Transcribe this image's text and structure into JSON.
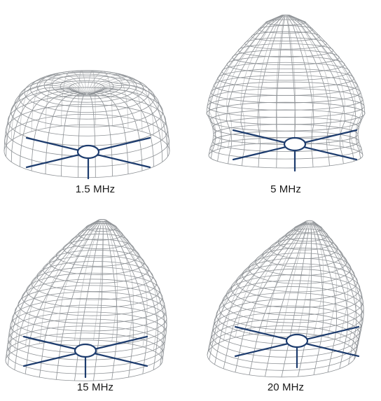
{
  "colors": {
    "mesh": "#8e9296",
    "antenna": "#1d3c6e",
    "background": "#ffffff",
    "text": "#1a1a1a"
  },
  "panels": [
    {
      "label": "1.5 MHz",
      "shape": "toroid-flat"
    },
    {
      "label": "5 MHz",
      "shape": "bell-lobe"
    },
    {
      "label": "15 MHz",
      "shape": "tilted-lobe"
    },
    {
      "label": "20 MHz",
      "shape": "tilted-toroid"
    }
  ]
}
